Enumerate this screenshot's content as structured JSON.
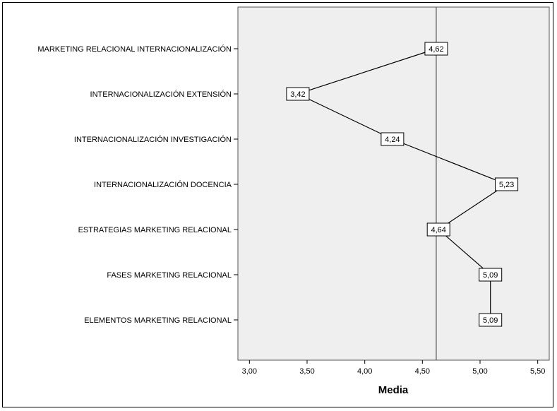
{
  "chart_data": {
    "type": "line",
    "orientation": "horizontal",
    "title": "",
    "xlabel": "Media",
    "ylabel": "",
    "xlim": [
      2.9,
      5.6
    ],
    "x_ticks": [
      "3,00",
      "3,50",
      "4,00",
      "4,50",
      "5,00",
      "5,50"
    ],
    "x_tick_values": [
      3.0,
      3.5,
      4.0,
      4.5,
      5.0,
      5.5
    ],
    "reference_line": 4.62,
    "grid": false,
    "colors": {
      "plot_background": "#efefef",
      "line": "#000000",
      "label_box": "#ffffff"
    },
    "categories": [
      "MARKETING RELACIONAL INTERNACIONALIZACIÓN",
      "INTERNACIONALIZACIÓN EXTENSIÓN",
      "INTERNACIONALIZACIÓN INVESTIGACIÓN",
      "INTERNACIONALIZACIÓN DOCENCIA",
      "ESTRATEGIAS MARKETING RELACIONAL",
      "FASES MARKETING RELACIONAL",
      "ELEMENTOS MARKETING RELACIONAL"
    ],
    "values": [
      4.62,
      3.42,
      4.24,
      5.23,
      4.64,
      5.09,
      5.09
    ],
    "data_labels": [
      "4,62",
      "3,42",
      "4,24",
      "5,23",
      "4,64",
      "5,09",
      "5,09"
    ]
  }
}
